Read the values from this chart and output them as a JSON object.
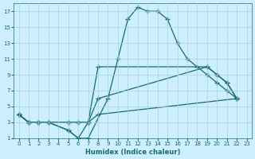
{
  "xlabel": "Humidex (Indice chaleur)",
  "xlim": [
    -0.5,
    23.5
  ],
  "ylim": [
    1,
    18
  ],
  "xticks": [
    0,
    1,
    2,
    3,
    4,
    5,
    6,
    7,
    8,
    9,
    10,
    11,
    12,
    13,
    14,
    15,
    16,
    17,
    18,
    19,
    20,
    21,
    22,
    23
  ],
  "yticks": [
    1,
    3,
    5,
    7,
    9,
    11,
    13,
    15,
    17
  ],
  "bg_color": "#cceeff",
  "grid_color": "#aad4d4",
  "line_color": "#1a6b6b",
  "lines": [
    {
      "x": [
        0,
        1,
        2,
        3,
        5,
        6,
        7,
        9,
        10,
        11,
        12,
        13,
        14,
        15,
        16,
        17,
        18,
        19,
        20,
        21,
        22
      ],
      "y": [
        4,
        3,
        3,
        3,
        2,
        1,
        1,
        6,
        11,
        16,
        17.5,
        17,
        17,
        16,
        13,
        11,
        10,
        9,
        8,
        7,
        6
      ]
    },
    {
      "x": [
        0,
        1,
        2,
        3,
        5,
        6,
        7,
        8,
        19,
        20,
        21,
        22
      ],
      "y": [
        4,
        3,
        3,
        3,
        2,
        1,
        3,
        10,
        10,
        9,
        8,
        6
      ]
    },
    {
      "x": [
        0,
        1,
        2,
        3,
        5,
        6,
        7,
        8,
        19,
        20,
        21,
        22
      ],
      "y": [
        4,
        3,
        3,
        3,
        3,
        3,
        3,
        6,
        10,
        9,
        8,
        6
      ]
    },
    {
      "x": [
        0,
        1,
        2,
        3,
        5,
        6,
        7,
        8,
        22
      ],
      "y": [
        4,
        3,
        3,
        3,
        3,
        3,
        3,
        4,
        6
      ]
    }
  ]
}
